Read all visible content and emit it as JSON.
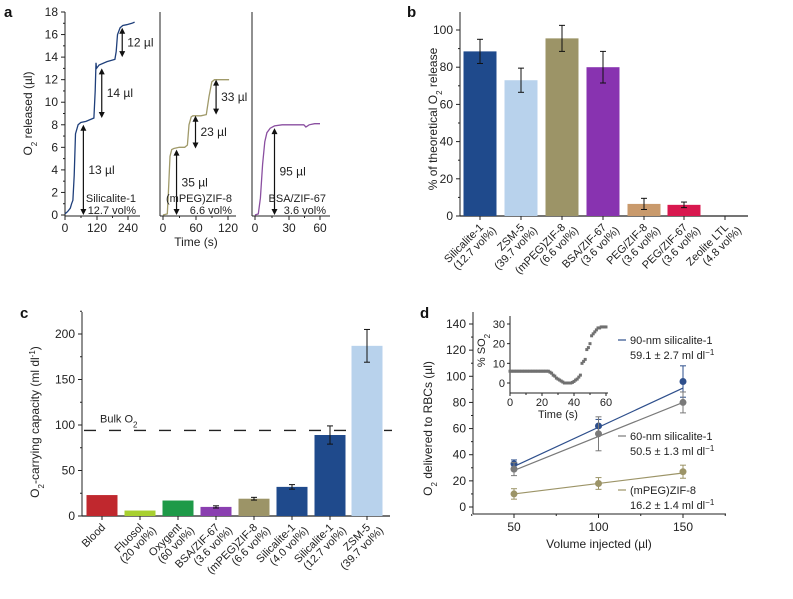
{
  "chart_data": [
    {
      "id": "a",
      "panel_label": "a",
      "type": "line",
      "ylabel": "O2 released (µl)",
      "ylabel_main": "O",
      "ylabel_sub": "2",
      "ylabel_rest": " released (µl)",
      "xlabel": "Time (s)",
      "ylim": [
        0,
        18
      ],
      "yticks": [
        0,
        2,
        4,
        6,
        8,
        10,
        12,
        14,
        16,
        18
      ],
      "subplots": [
        {
          "name": "Silicalite-1",
          "caption": [
            "Silicalite-1",
            "12.7 vol%"
          ],
          "color": "#1f3f7a",
          "xlim": [
            0,
            270
          ],
          "xticks": [
            0,
            120,
            240
          ],
          "x": [
            0,
            10,
            20,
            25,
            30,
            35,
            40,
            50,
            60,
            80,
            100,
            110,
            115,
            118,
            120,
            130,
            160,
            190,
            195,
            200,
            210,
            220,
            240,
            255,
            265
          ],
          "y": [
            0.1,
            0.3,
            0.6,
            1.0,
            1.3,
            3.5,
            7.2,
            8.0,
            8.2,
            8.3,
            8.5,
            8.6,
            11.0,
            13.5,
            13.0,
            13.3,
            13.6,
            13.8,
            14.5,
            16.0,
            16.6,
            16.8,
            16.9,
            17.0,
            17.1
          ],
          "annotations": [
            {
              "label": "13 µl",
              "from": 0,
              "to": 8.0,
              "x": 70
            },
            {
              "label": "14 µl",
              "from": 8.6,
              "to": 13.0,
              "x": 140
            },
            {
              "label": "12 µl",
              "from": 14.0,
              "to": 16.6,
              "x": 218
            }
          ]
        },
        {
          "name": "(mPEG)ZIF-8",
          "caption": [
            "(mPEG)ZIF-8",
            "6.6 vol%"
          ],
          "color": "#a09a6a",
          "xlim": [
            0,
            140
          ],
          "xticks": [
            0,
            60,
            120
          ],
          "x": [
            0,
            8,
            10,
            13,
            16,
            20,
            30,
            40,
            45,
            48,
            52,
            55,
            70,
            80,
            85,
            90,
            95,
            100,
            110,
            122
          ],
          "y": [
            0.0,
            0.1,
            2.0,
            5.2,
            5.8,
            5.9,
            6.0,
            6.0,
            6.2,
            8.0,
            8.7,
            8.8,
            8.8,
            8.9,
            10.5,
            11.8,
            12.0,
            12.0,
            12.0,
            12.0
          ],
          "annotations": [
            {
              "label": "35 µl",
              "from": 0,
              "to": 5.8,
              "x": 25
            },
            {
              "label": "23 µl",
              "from": 5.9,
              "to": 8.8,
              "x": 60
            },
            {
              "label": "33 µl",
              "from": 8.9,
              "to": 12.0,
              "x": 98
            }
          ]
        },
        {
          "name": "BSA/ZIF-67",
          "caption": [
            "BSA/ZIF-67",
            "3.6 vol%"
          ],
          "color": "#8a4fa0",
          "xlim": [
            0,
            70
          ],
          "xticks": [
            0,
            30,
            60
          ],
          "x": [
            0,
            3,
            5,
            7,
            9,
            11,
            14,
            18,
            25,
            35,
            45,
            47,
            50,
            55,
            60
          ],
          "y": [
            0.0,
            0.1,
            1.5,
            4.5,
            6.5,
            7.3,
            7.7,
            7.9,
            8.0,
            8.0,
            8.0,
            7.8,
            8.0,
            8.1,
            8.1
          ],
          "annotations": [
            {
              "label": "95 µl",
              "from": 0,
              "to": 7.7,
              "x": 18
            }
          ]
        }
      ]
    },
    {
      "id": "b",
      "panel_label": "b",
      "type": "bar",
      "ylabel_main": "% of theoretical O",
      "ylabel_sub": "2",
      "ylabel_rest": " release",
      "ylim": [
        0,
        110
      ],
      "yticks": [
        0,
        20,
        40,
        60,
        80,
        100
      ],
      "categories": [
        [
          "Silicalite-1",
          "(12.7 vol%)"
        ],
        [
          "ZSM-5",
          "(39.7 vol%)"
        ],
        [
          "(mPEG)ZIF-8",
          "(6.6 vol%)"
        ],
        [
          "BSA/ZIF-67",
          "(3.6 vol%)"
        ],
        [
          "PEG/ZIF-8",
          "(3.6 vol%)"
        ],
        [
          "PEG/ZIF-67",
          "(3.6 vol%)"
        ],
        [
          "Zeolite LTL",
          "(4.8 vol%)"
        ]
      ],
      "values": [
        88.5,
        73,
        95.5,
        80,
        6.5,
        6,
        0
      ],
      "errors": [
        6.5,
        6.5,
        7,
        8.5,
        3,
        1.5,
        0
      ],
      "colors": [
        "#1f4a8c",
        "#b8d2ec",
        "#9c9467",
        "#8833b0",
        "#c99a6c",
        "#d8184f",
        "#ffffff"
      ]
    },
    {
      "id": "c",
      "panel_label": "c",
      "type": "bar",
      "ylabel_main": "O",
      "ylabel_sub": "2",
      "ylabel_rest": "-carrying capacity (ml dl",
      "ylabel_sup": "-1",
      "ylabel_end": ")",
      "ylim": [
        0,
        230
      ],
      "yticks": [
        0,
        50,
        100,
        150,
        200
      ],
      "reference_line": {
        "label_main": "Bulk O",
        "label_sub": "2",
        "value": 94
      },
      "categories": [
        [
          "Blood"
        ],
        [
          "Fluosol",
          "(20 vol%)"
        ],
        [
          "Oxygent",
          "(60 vol%)"
        ],
        [
          "BSA/ZIF-67",
          "(3.6 vol%)"
        ],
        [
          "(mPEG)ZIF-8",
          "(6.6 vol%)"
        ],
        [
          "Silicalite-1",
          "(4.0 vol%)"
        ],
        [
          "Silicalite-1",
          "(12.7 vol%)"
        ],
        [
          "ZSM-5",
          "(39.7 vol%)"
        ]
      ],
      "values": [
        23,
        6,
        17,
        10,
        19,
        32,
        89,
        187
      ],
      "errors": [
        0,
        0,
        0,
        1.2,
        1.5,
        2.5,
        10,
        18
      ],
      "colors": [
        "#c0282e",
        "#a8d030",
        "#1e9a48",
        "#8a3fb0",
        "#9c9467",
        "#1f4a8c",
        "#1f4a8c",
        "#b8d2ec"
      ]
    },
    {
      "id": "d",
      "panel_label": "d",
      "type": "scatter",
      "ylabel_main": "O",
      "ylabel_sub": "2",
      "ylabel_rest": " delivered to RBCs (µl)",
      "xlabel": "Volume injected (µl)",
      "xlim": [
        25,
        175
      ],
      "ylim": [
        -5,
        145
      ],
      "xticks": [
        50,
        100,
        150
      ],
      "yticks": [
        0,
        20,
        40,
        60,
        80,
        100,
        120,
        140
      ],
      "series": [
        {
          "name": "90-nm silicalite-1",
          "rate": "59.1 ± 2.7 ml dl",
          "sup": "−1",
          "color": "#2e4f8c",
          "x": [
            50,
            100,
            150
          ],
          "y": [
            33,
            62,
            96
          ],
          "err": [
            3,
            5,
            12
          ],
          "fit": [
            [
              50,
              31
            ],
            [
              150,
              91
            ]
          ]
        },
        {
          "name": "60-nm silicalite-1",
          "rate": "50.5 ± 1.3 ml dl",
          "sup": "−1",
          "color": "#7a7a7a",
          "x": [
            50,
            100,
            150
          ],
          "y": [
            29,
            56,
            80
          ],
          "err": [
            5,
            13,
            8
          ],
          "fit": [
            [
              50,
              28
            ],
            [
              150,
              80
            ]
          ]
        },
        {
          "name": "(mPEG)ZIF-8",
          "rate": "16.2 ± 1.4 ml dl",
          "sup": "−1",
          "color": "#9c9467",
          "x": [
            50,
            100,
            150
          ],
          "y": [
            10,
            18,
            27
          ],
          "err": [
            4,
            4.5,
            5
          ],
          "fit": [
            [
              50,
              10
            ],
            [
              150,
              26
            ]
          ]
        }
      ],
      "inset": {
        "ylabel_main": "% SO",
        "ylabel_sub": "2",
        "xlabel": "Time (s)",
        "xlim": [
          0,
          60
        ],
        "ylim": [
          -3,
          33
        ],
        "xticks": [
          0,
          20,
          40,
          60
        ],
        "yticks": [
          0,
          10,
          20,
          30
        ],
        "color": "#707070",
        "x": [
          0,
          1,
          2,
          3,
          4,
          5,
          6,
          7,
          8,
          9,
          10,
          11,
          12,
          13,
          14,
          15,
          16,
          17,
          18,
          19,
          20,
          21,
          22,
          23,
          24,
          25,
          26,
          27,
          28,
          29,
          30,
          31,
          32,
          33,
          34,
          35,
          36,
          37,
          38,
          39,
          40,
          41,
          42,
          43,
          44,
          45,
          46,
          47,
          48,
          49,
          50,
          51,
          52,
          53,
          54,
          55,
          56,
          57,
          58,
          59,
          60
        ],
        "y": [
          6,
          6,
          6,
          6,
          6,
          6,
          6,
          6,
          6,
          6,
          6,
          6,
          6,
          6,
          6,
          6,
          6,
          6,
          6,
          6,
          6,
          6,
          6,
          6,
          6,
          5.5,
          5,
          4,
          3.5,
          2.5,
          2,
          1.5,
          1,
          0.5,
          0,
          0,
          0,
          0,
          0,
          0.3,
          0.8,
          1.5,
          2,
          3,
          4,
          10,
          11,
          12,
          17,
          18,
          20,
          24,
          25,
          26,
          27,
          28,
          28,
          28.5,
          28.5,
          28.5,
          28.5
        ]
      }
    }
  ]
}
